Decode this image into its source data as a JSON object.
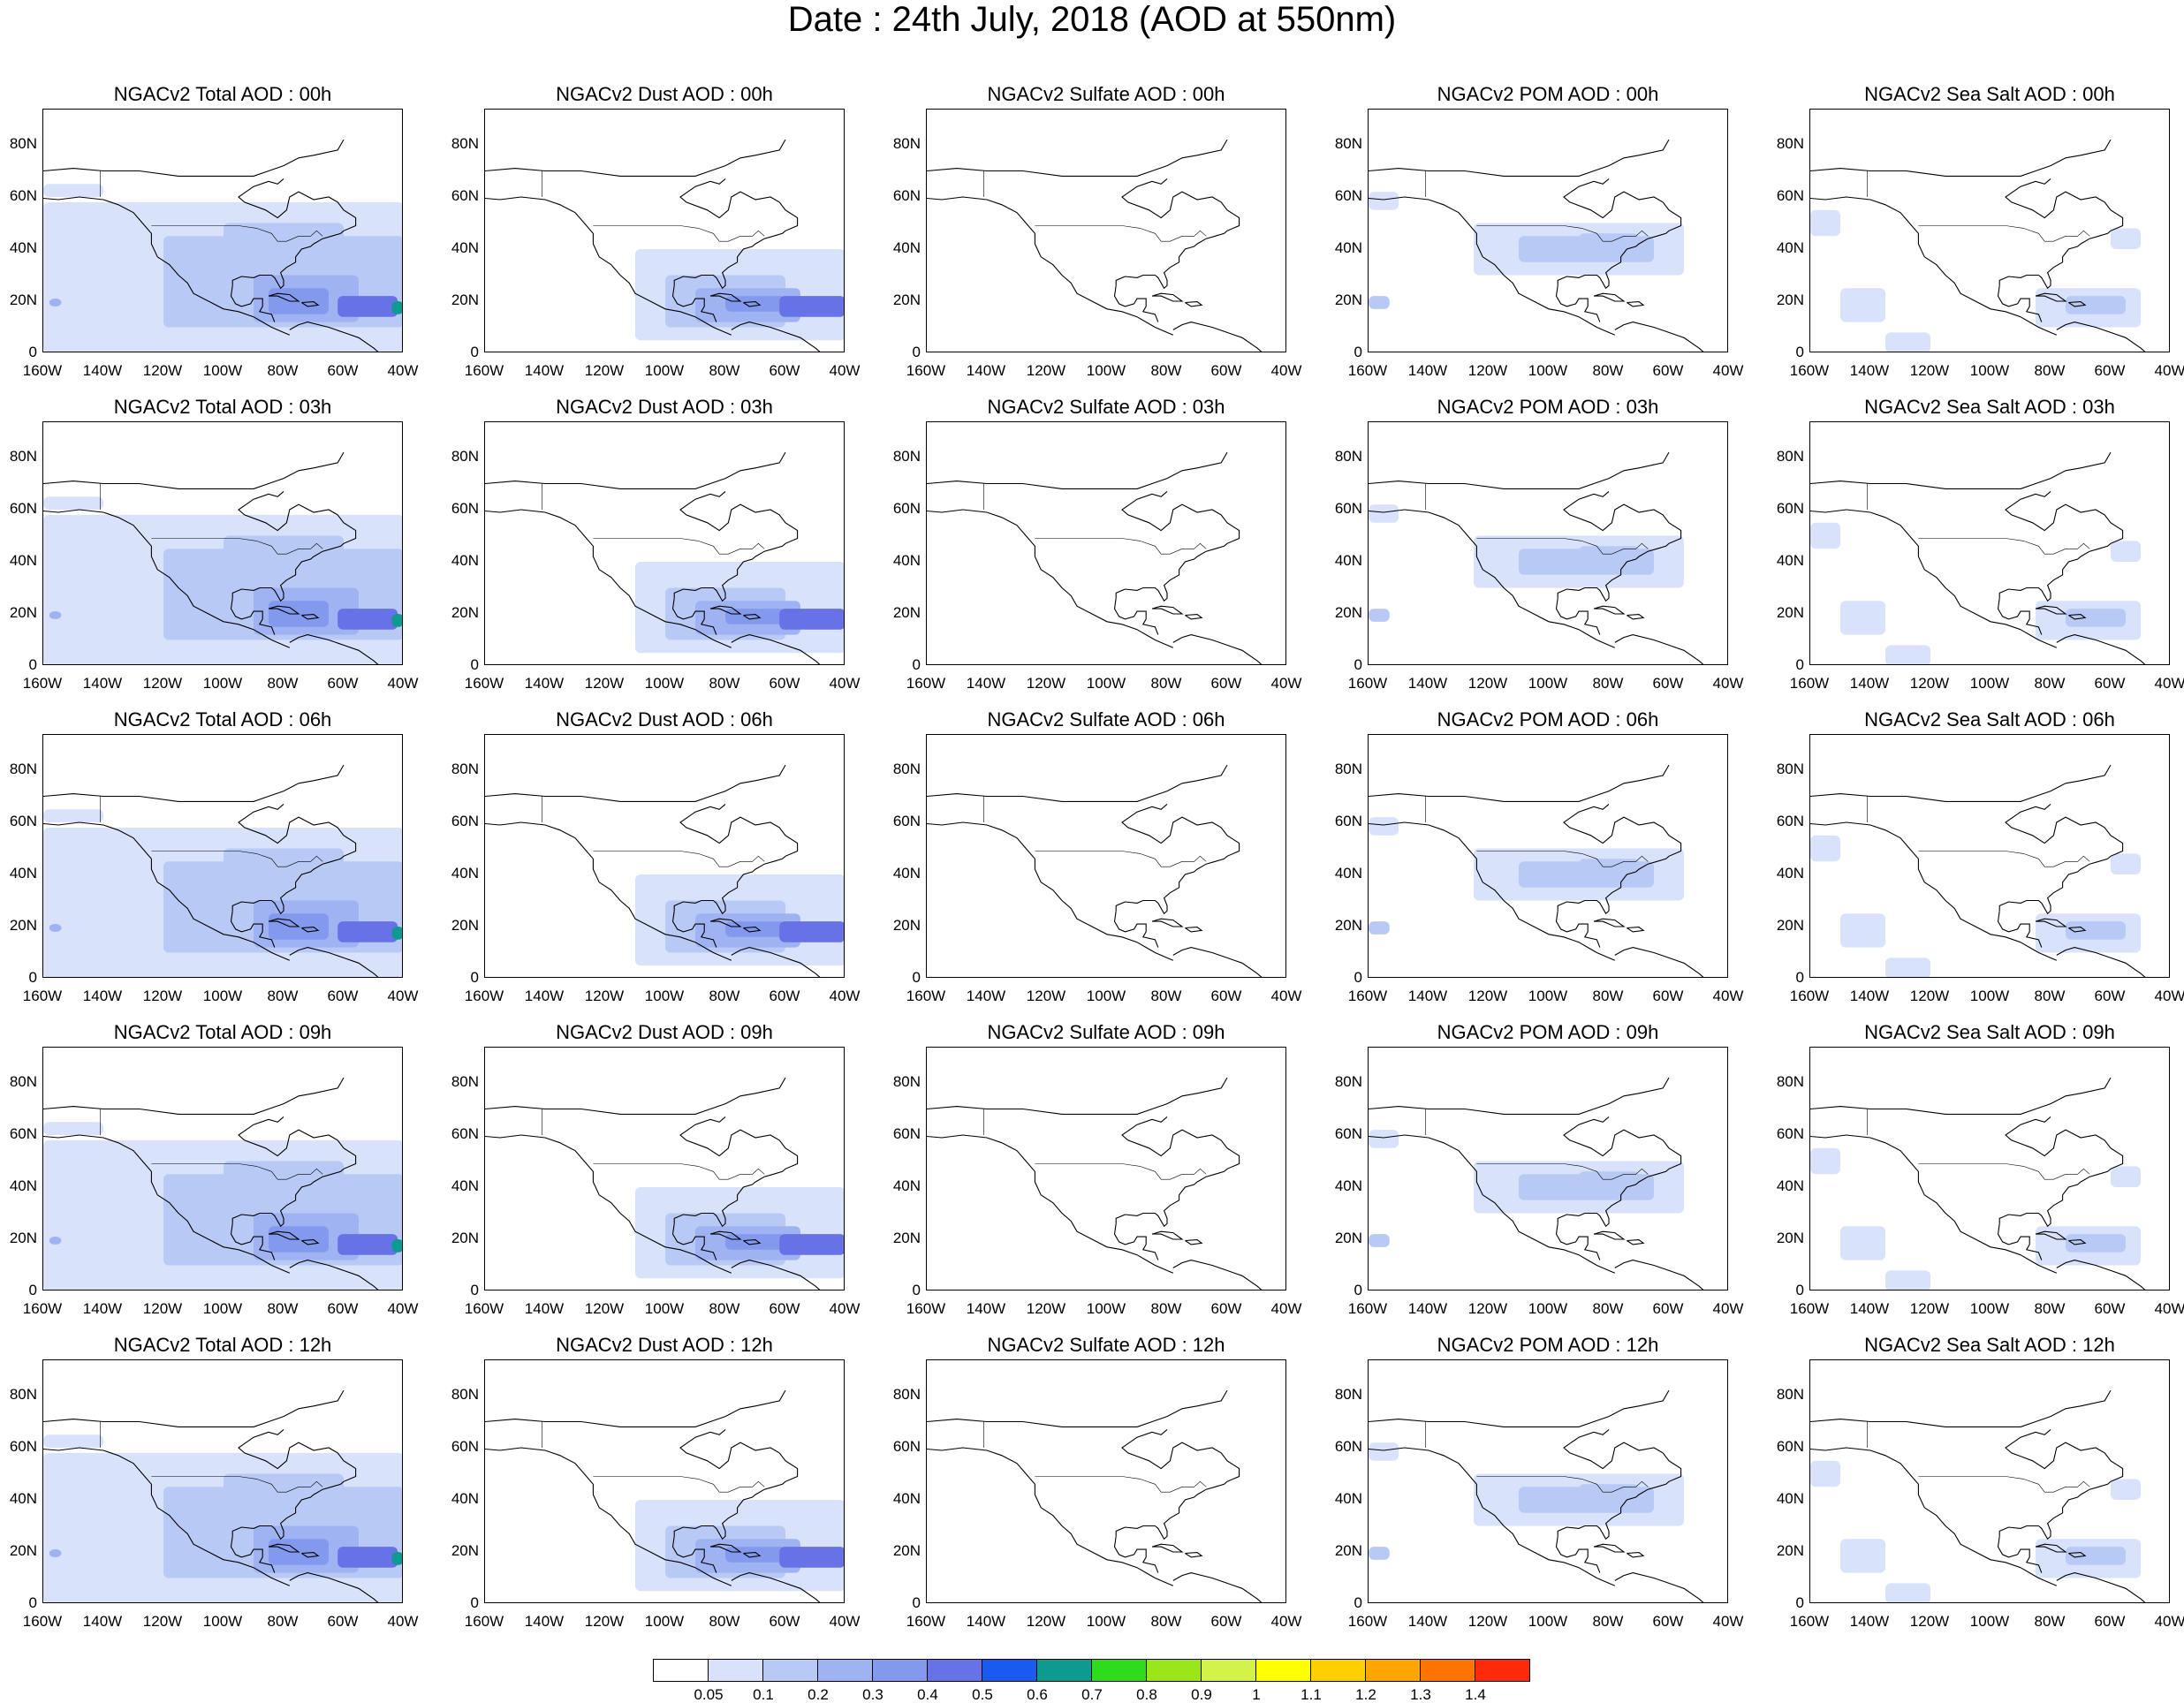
{
  "title": "Date : 24th July, 2018 (AOD at 550nm)",
  "lat_ticks": [
    "80N",
    "60N",
    "40N",
    "20N",
    "0"
  ],
  "lon_ticks": [
    "160W",
    "140W",
    "120W",
    "100W",
    "80W",
    "60W",
    "40W"
  ],
  "panels": [
    [
      "NGACv2 Total AOD : 00h",
      "NGACv2 Dust AOD : 00h",
      "NGACv2 Sulfate AOD : 00h",
      "NGACv2 POM AOD : 00h",
      "NGACv2 Sea Salt AOD : 00h"
    ],
    [
      "NGACv2 Total AOD : 03h",
      "NGACv2 Dust AOD : 03h",
      "NGACv2 Sulfate AOD : 03h",
      "NGACv2 POM AOD : 03h",
      "NGACv2 Sea Salt AOD : 03h"
    ],
    [
      "NGACv2 Total AOD : 06h",
      "NGACv2 Dust AOD : 06h",
      "NGACv2 Sulfate AOD : 06h",
      "NGACv2 POM AOD : 06h",
      "NGACv2 Sea Salt AOD : 06h"
    ],
    [
      "NGACv2 Total AOD : 09h",
      "NGACv2 Dust AOD : 09h",
      "NGACv2 Sulfate AOD : 09h",
      "NGACv2 POM AOD : 09h",
      "NGACv2 Sea Salt  AOD : 09h"
    ],
    [
      "NGACv2 Total AOD  : 12h",
      "NGACv2 Dust AOD : 12h",
      "NGACv2 Sulfate AOD : 12h",
      "NGACv2 POM  AOD : 12h",
      "NGACv2 Sea Salt  AOD : 12h"
    ]
  ],
  "colorbar": {
    "labels": [
      "0.05",
      "0.1",
      "0.2",
      "0.3",
      "0.4",
      "0.5",
      "0.6",
      "0.7",
      "0.8",
      "0.9",
      "1",
      "1.1",
      "1.2",
      "1.3",
      "1.4"
    ],
    "colors": [
      "#ffffff",
      "#d8e2fb",
      "#b9c9f5",
      "#9fb3f3",
      "#8299ee",
      "#6672e6",
      "#1b5aee",
      "#0e9a8e",
      "#2fdc1d",
      "#9be61a",
      "#d2f24a",
      "#ffff00",
      "#ffcf00",
      "#ffa500",
      "#ff7300",
      "#ff2a0a"
    ]
  },
  "shading_colors": {
    "lightest": "#d8e2fb",
    "light": "#b9c9f5",
    "medium": "#9fb3f3",
    "medium_dark": "#8299ee",
    "dark": "#6672e6",
    "teal": "#0e9a8e"
  }
}
